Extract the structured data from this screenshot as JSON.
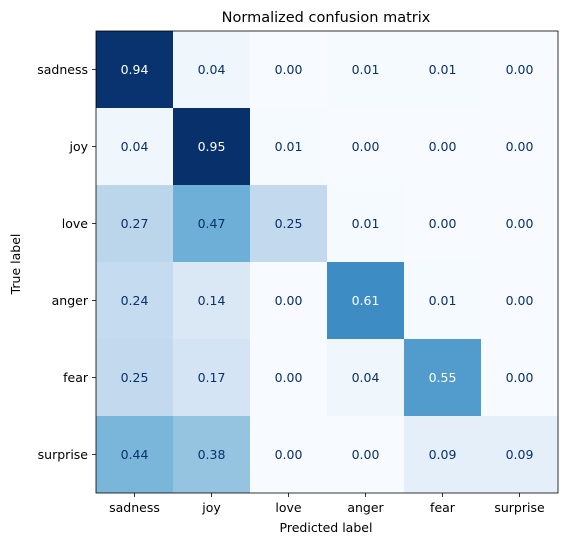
{
  "chart_data": {
    "type": "heatmap",
    "title": "Normalized confusion matrix",
    "xlabel": "Predicted label",
    "ylabel": "True label",
    "x_categories": [
      "sadness",
      "joy",
      "love",
      "anger",
      "fear",
      "surprise"
    ],
    "y_categories": [
      "sadness",
      "joy",
      "love",
      "anger",
      "fear",
      "surprise"
    ],
    "values": [
      [
        0.94,
        0.04,
        0.0,
        0.01,
        0.01,
        0.0
      ],
      [
        0.04,
        0.95,
        0.01,
        0.0,
        0.0,
        0.0
      ],
      [
        0.27,
        0.47,
        0.25,
        0.01,
        0.0,
        0.0
      ],
      [
        0.24,
        0.14,
        0.0,
        0.61,
        0.01,
        0.0
      ],
      [
        0.25,
        0.17,
        0.0,
        0.04,
        0.55,
        0.0
      ],
      [
        0.44,
        0.38,
        0.0,
        0.0,
        0.09,
        0.09
      ]
    ],
    "colormap": "Blues",
    "text_colors": {
      "light": "#ffffff",
      "dark": "#08306b"
    },
    "grid": false,
    "colorbar": false
  }
}
